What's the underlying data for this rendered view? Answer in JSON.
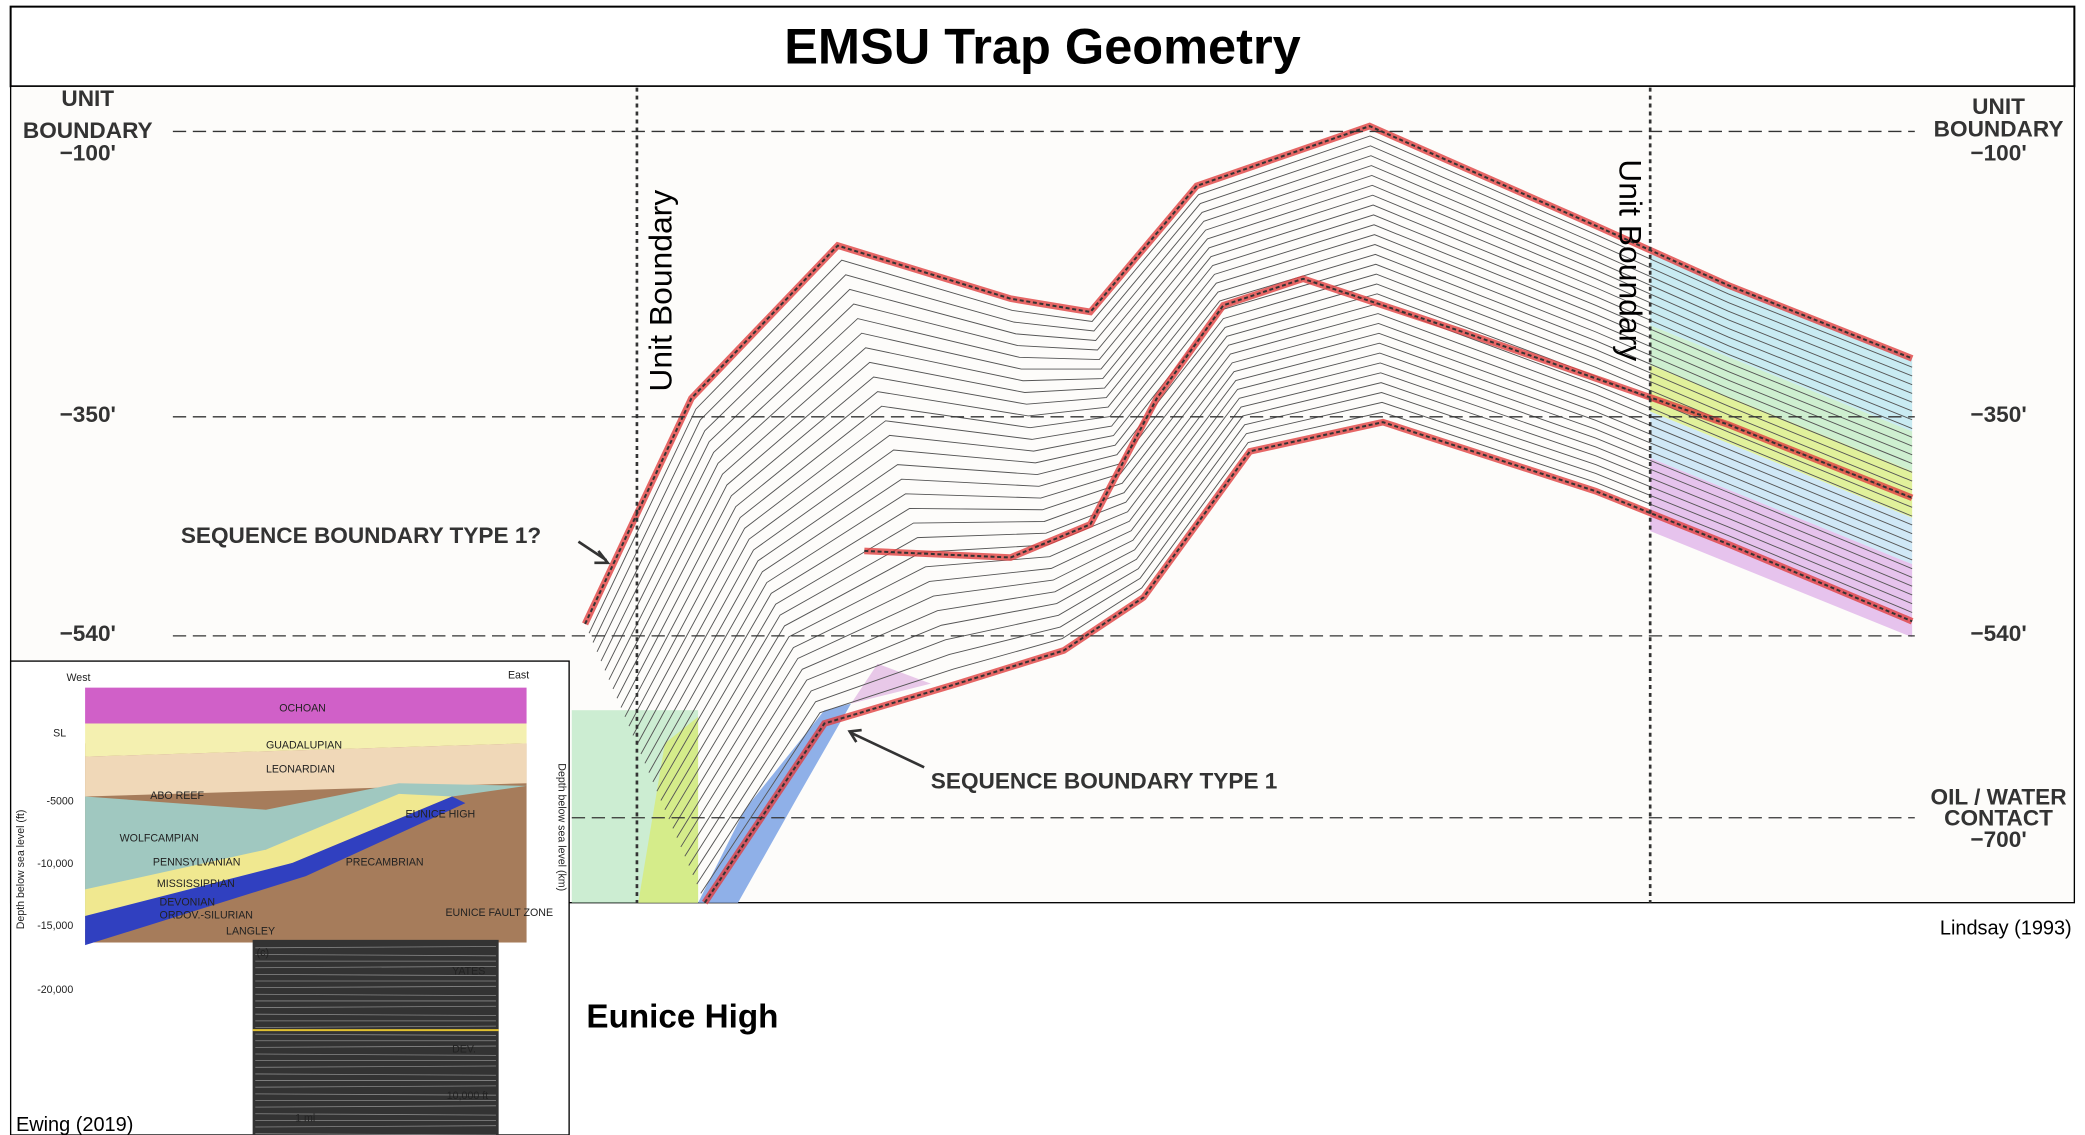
{
  "header": {
    "title": "EMSU Trap Geometry"
  },
  "cross_section": {
    "left_labels": [
      [
        "UNIT",
        "BOUNDARY",
        "−100'"
      ],
      [
        "−350'"
      ],
      [
        "−540'"
      ]
    ],
    "right_labels": [
      [
        "UNIT",
        "BOUNDARY",
        "−100'"
      ],
      [
        "−350'"
      ],
      [
        "−540'"
      ],
      [
        "OIL / WATER",
        "CONTACT",
        "−700'"
      ]
    ],
    "boundary_labels": [
      "Unit Boundary",
      "Unit Boundary"
    ],
    "annotations": [
      "SEQUENCE BOUNDARY TYPE 1?",
      "SEQUENCE BOUNDARY TYPE 1"
    ],
    "source": "Lindsay (1993)"
  },
  "inset": {
    "labels": [
      "West",
      "East",
      "OCHOAN",
      "GUADALUPIAN",
      "LEONARDIAN",
      "ABO REEF",
      "WOLFCAMPIAN",
      "PENNSYLVANIAN",
      "MISSISSIPPIAN",
      "DEVONIAN",
      "ORDOV.-SILURIAN",
      "PRECAMBRIAN",
      "EUNICE HIGH",
      "LANGLEY",
      "EUNICE FAULT ZONE",
      "Depth below sea level (ft)",
      "Depth below sea level (km)",
      "SL",
      "-5000",
      "-10,000",
      "-15,000",
      "-20,000",
      "YATES",
      "DEV.",
      "10,000 ft",
      "1 mi",
      "(c)"
    ],
    "source": "Ewing (2019)"
  },
  "caption": "Eunice High"
}
